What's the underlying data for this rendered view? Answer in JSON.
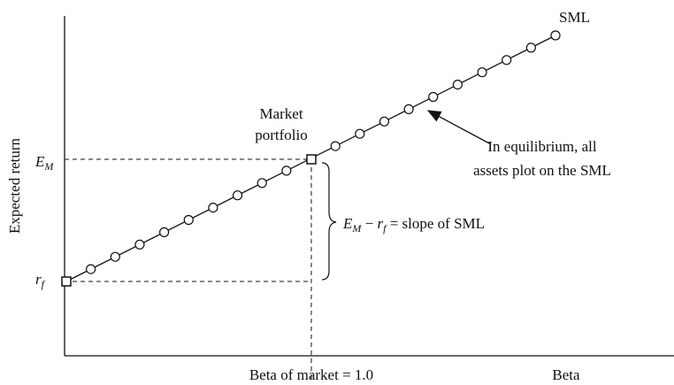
{
  "diagram": {
    "line_label": "SML",
    "market_label": [
      "Market",
      "portfolio"
    ],
    "annotation": [
      "In equilibrium, all",
      "assets plot on the SML"
    ],
    "slope_label": {
      "e": "E",
      "e_sub": "M",
      "minus": " − ",
      "r": "r",
      "r_sub": "f",
      "rest": " = slope of SML"
    },
    "em_label": {
      "main": "E",
      "sub": "M"
    },
    "rf_label": {
      "main": "r",
      "sub": "f"
    },
    "y_axis_label": "Expected return",
    "market_beta_label": "Beta of market = 1.0",
    "x_axis_label": "Beta"
  }
}
